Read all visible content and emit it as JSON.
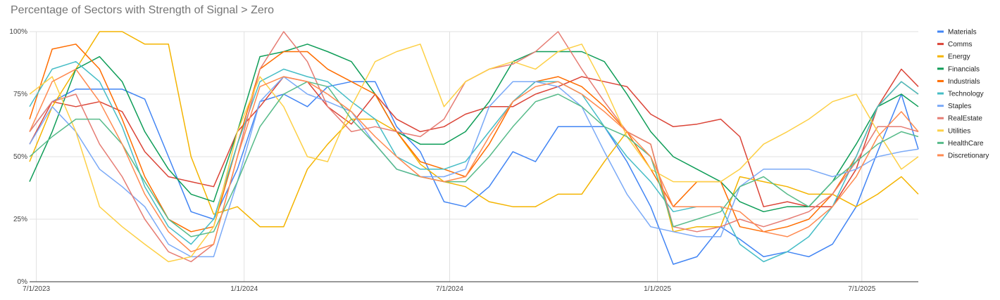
{
  "chart_data": {
    "type": "line",
    "title": "Percentage of Sectors with Strength of Signal > Zero",
    "xlabel": "",
    "ylabel": "",
    "x_ticks": [
      "7/1/2023",
      "1/1/2024",
      "7/1/2024",
      "1/1/2025",
      "7/1/2025"
    ],
    "y_ticks": [
      "0%",
      "25%",
      "50%",
      "75%",
      "100%"
    ],
    "xlim": [
      "2023-06-25",
      "2025-08-20"
    ],
    "ylim": [
      0,
      100
    ],
    "grid": true,
    "legend_position": "right",
    "x": [
      "2023-06-25",
      "2023-07-15",
      "2023-08-05",
      "2023-08-26",
      "2023-09-15",
      "2023-10-05",
      "2023-10-26",
      "2023-11-15",
      "2023-12-05",
      "2023-12-26",
      "2024-01-15",
      "2024-02-05",
      "2024-02-26",
      "2024-03-15",
      "2024-04-05",
      "2024-04-26",
      "2024-05-15",
      "2024-06-05",
      "2024-06-26",
      "2024-07-15",
      "2024-08-05",
      "2024-08-26",
      "2024-09-15",
      "2024-10-05",
      "2024-10-26",
      "2024-11-15",
      "2024-12-05",
      "2024-12-26",
      "2025-01-15",
      "2025-02-05",
      "2025-02-26",
      "2025-03-15",
      "2025-04-05",
      "2025-04-26",
      "2025-05-15",
      "2025-06-05",
      "2025-06-26",
      "2025-07-15",
      "2025-08-05",
      "2025-08-20"
    ],
    "series": [
      {
        "name": "Materials",
        "color": "#4285F4",
        "values": [
          60,
          72,
          77,
          77,
          77,
          73,
          50,
          28,
          25,
          45,
          72,
          75,
          70,
          78,
          80,
          80,
          62,
          52,
          32,
          30,
          38,
          52,
          48,
          62,
          62,
          62,
          48,
          30,
          7,
          10,
          22,
          17,
          10,
          12,
          10,
          15,
          30,
          52,
          75,
          53
        ]
      },
      {
        "name": "Comms",
        "color": "#DB4437",
        "values": [
          55,
          72,
          70,
          72,
          68,
          52,
          42,
          40,
          38,
          60,
          70,
          82,
          80,
          70,
          63,
          75,
          65,
          60,
          62,
          67,
          70,
          70,
          75,
          78,
          82,
          80,
          78,
          67,
          62,
          63,
          65,
          58,
          30,
          32,
          30,
          30,
          45,
          70,
          85,
          78
        ]
      },
      {
        "name": "Energy",
        "color": "#F4B400",
        "values": [
          48,
          70,
          85,
          100,
          100,
          95,
          95,
          50,
          27,
          30,
          22,
          22,
          45,
          55,
          65,
          65,
          60,
          47,
          40,
          38,
          32,
          30,
          30,
          35,
          35,
          48,
          60,
          55,
          20,
          22,
          22,
          42,
          40,
          38,
          35,
          35,
          30,
          35,
          42,
          35
        ]
      },
      {
        "name": "Financials",
        "color": "#0F9D58",
        "values": [
          40,
          60,
          85,
          90,
          80,
          60,
          45,
          35,
          32,
          60,
          90,
          92,
          95,
          92,
          88,
          75,
          60,
          55,
          55,
          60,
          72,
          88,
          92,
          92,
          92,
          88,
          75,
          60,
          50,
          45,
          40,
          32,
          28,
          30,
          30,
          40,
          55,
          70,
          75,
          70
        ]
      },
      {
        "name": "Industrials",
        "color": "#FF6D00",
        "values": [
          65,
          93,
          95,
          85,
          65,
          42,
          25,
          20,
          22,
          55,
          85,
          92,
          92,
          85,
          80,
          75,
          60,
          48,
          45,
          42,
          55,
          72,
          80,
          82,
          78,
          70,
          60,
          45,
          30,
          40,
          40,
          22,
          20,
          22,
          25,
          35,
          50,
          70,
          80,
          75
        ]
      },
      {
        "name": "Technology",
        "color": "#46BDC6",
        "values": [
          70,
          85,
          88,
          80,
          62,
          38,
          22,
          15,
          25,
          55,
          80,
          85,
          82,
          80,
          72,
          65,
          50,
          45,
          45,
          48,
          60,
          72,
          80,
          80,
          75,
          62,
          50,
          40,
          28,
          30,
          30,
          15,
          8,
          12,
          18,
          30,
          50,
          70,
          80,
          75
        ]
      },
      {
        "name": "Staples",
        "color": "#7BAAF7",
        "values": [
          55,
          70,
          60,
          45,
          38,
          30,
          15,
          10,
          10,
          40,
          72,
          82,
          75,
          72,
          68,
          55,
          45,
          42,
          42,
          45,
          70,
          80,
          80,
          78,
          70,
          52,
          35,
          22,
          20,
          18,
          18,
          38,
          45,
          45,
          45,
          42,
          45,
          50,
          52,
          53
        ]
      },
      {
        "name": "RealEstate",
        "color": "#E67C73",
        "values": [
          60,
          72,
          75,
          55,
          42,
          25,
          12,
          8,
          15,
          50,
          85,
          100,
          88,
          70,
          60,
          62,
          60,
          58,
          65,
          80,
          85,
          87,
          92,
          100,
          85,
          72,
          60,
          55,
          22,
          20,
          22,
          25,
          22,
          25,
          28,
          35,
          48,
          62,
          62,
          60
        ]
      },
      {
        "name": "Utilities",
        "color": "#FDD047",
        "values": [
          75,
          82,
          60,
          30,
          22,
          15,
          8,
          10,
          22,
          60,
          82,
          70,
          50,
          48,
          70,
          88,
          92,
          95,
          70,
          80,
          85,
          88,
          85,
          92,
          95,
          78,
          58,
          45,
          40,
          40,
          40,
          45,
          55,
          60,
          65,
          72,
          75,
          60,
          45,
          50
        ]
      },
      {
        "name": "HealthCare",
        "color": "#57BB8A",
        "values": [
          50,
          58,
          65,
          65,
          55,
          40,
          25,
          18,
          20,
          40,
          62,
          75,
          80,
          78,
          65,
          55,
          45,
          42,
          40,
          40,
          50,
          62,
          72,
          75,
          70,
          62,
          58,
          50,
          22,
          25,
          28,
          38,
          42,
          35,
          30,
          40,
          48,
          55,
          60,
          58
        ]
      },
      {
        "name": "Discretionary",
        "color": "#FF8A50",
        "values": [
          60,
          80,
          85,
          72,
          55,
          35,
          20,
          12,
          15,
          50,
          78,
          82,
          80,
          75,
          68,
          58,
          50,
          42,
          40,
          42,
          58,
          72,
          78,
          80,
          75,
          68,
          60,
          50,
          30,
          30,
          30,
          28,
          20,
          18,
          22,
          30,
          42,
          58,
          68,
          60
        ]
      }
    ]
  }
}
